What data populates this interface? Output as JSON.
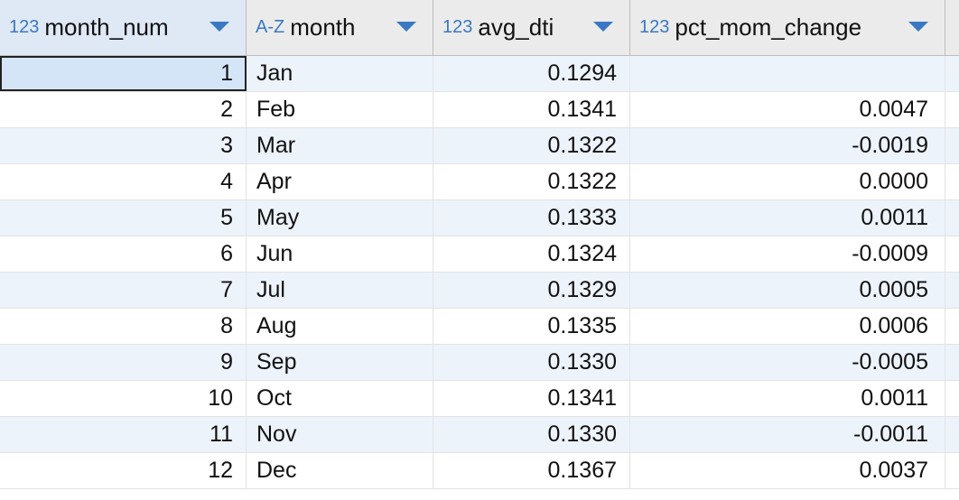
{
  "columns": [
    {
      "type": "123",
      "name": "month_num"
    },
    {
      "type": "A-Z",
      "name": "month"
    },
    {
      "type": "123",
      "name": "avg_dti"
    },
    {
      "type": "123",
      "name": "pct_mom_change"
    }
  ],
  "rows": [
    {
      "month_num": "1",
      "month": "Jan",
      "avg_dti": "0.1294",
      "pct_mom_change": ""
    },
    {
      "month_num": "2",
      "month": "Feb",
      "avg_dti": "0.1341",
      "pct_mom_change": "0.0047"
    },
    {
      "month_num": "3",
      "month": "Mar",
      "avg_dti": "0.1322",
      "pct_mom_change": "-0.0019"
    },
    {
      "month_num": "4",
      "month": "Apr",
      "avg_dti": "0.1322",
      "pct_mom_change": "0.0000"
    },
    {
      "month_num": "5",
      "month": "May",
      "avg_dti": "0.1333",
      "pct_mom_change": "0.0011"
    },
    {
      "month_num": "6",
      "month": "Jun",
      "avg_dti": "0.1324",
      "pct_mom_change": "-0.0009"
    },
    {
      "month_num": "7",
      "month": "Jul",
      "avg_dti": "0.1329",
      "pct_mom_change": "0.0005"
    },
    {
      "month_num": "8",
      "month": "Aug",
      "avg_dti": "0.1335",
      "pct_mom_change": "0.0006"
    },
    {
      "month_num": "9",
      "month": "Sep",
      "avg_dti": "0.1330",
      "pct_mom_change": "-0.0005"
    },
    {
      "month_num": "10",
      "month": "Oct",
      "avg_dti": "0.1341",
      "pct_mom_change": "0.0011"
    },
    {
      "month_num": "11",
      "month": "Nov",
      "avg_dti": "0.1330",
      "pct_mom_change": "-0.0011"
    },
    {
      "month_num": "12",
      "month": "Dec",
      "avg_dti": "0.1367",
      "pct_mom_change": "0.0037"
    }
  ],
  "colors": {
    "accent": "#3a78c4",
    "header_bg": "#ebebeb",
    "alt_row_bg": "#edf3fb",
    "selected_cell_bg": "#d5e5f8"
  },
  "icons": {
    "sort_arrow": "chevron-down-icon"
  }
}
